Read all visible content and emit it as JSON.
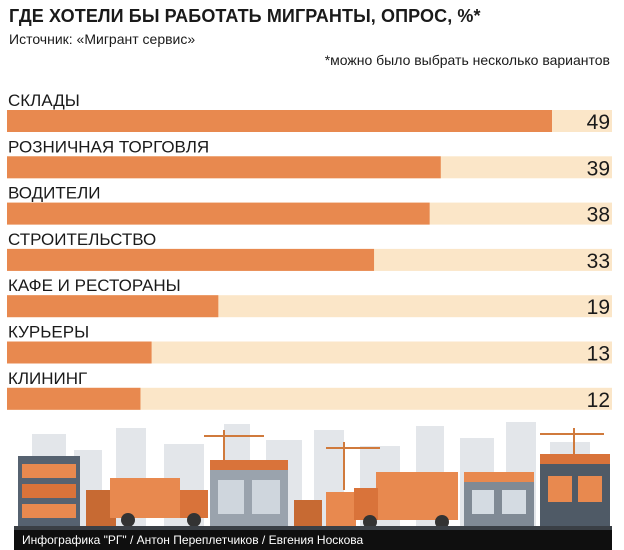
{
  "header": {
    "title": "ГДЕ ХОТЕЛИ БЫ РАБОТАТЬ МИГРАНТЫ, ОПРОС, %*",
    "source": "Источник: «Мигрант сервис»",
    "note": "*можно было выбрать несколько вариантов"
  },
  "colors": {
    "bar": "#e8894f",
    "track": "#fbe6c8",
    "text": "#1a1a1a"
  },
  "chart_data": {
    "type": "bar",
    "orientation": "horizontal",
    "categories": [
      "СКЛАДЫ",
      "РОЗНИЧНАЯ ТОРГОВЛЯ",
      "ВОДИТЕЛИ",
      "СТРОИТЕЛЬСТВО",
      "КАФЕ И РЕСТОРАНЫ",
      "КУРЬЕРЫ",
      "КЛИНИНГ"
    ],
    "values": [
      49,
      39,
      38,
      33,
      19,
      13,
      12
    ],
    "title": "ГДЕ ХОТЕЛИ БЫ РАБОТАТЬ МИГРАНТЫ, ОПРОС, %*",
    "xlim": [
      0,
      49
    ],
    "grid": false,
    "data_labels": true
  },
  "illustration": {
    "icon": "city-industry-skyline-illustration"
  },
  "footer": {
    "credit": "Инфографика \"РГ\" / Антон Переплетчиков / Евгения Носкова"
  }
}
